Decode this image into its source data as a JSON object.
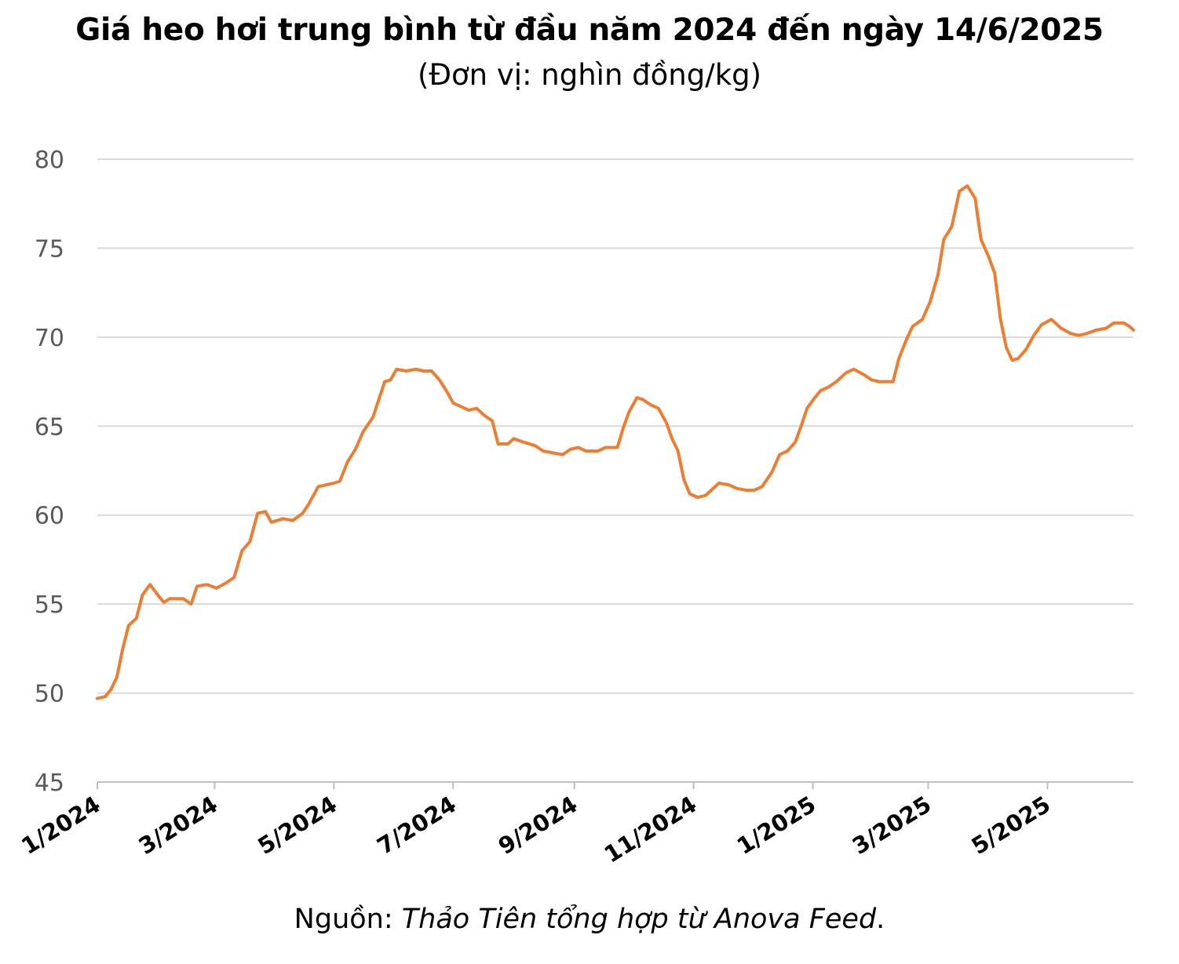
{
  "chart_data": {
    "type": "line",
    "title": "Giá heo hơi trung bình từ đầu năm 2024 đến ngày 14/6/2025",
    "subtitle": "(Đơn vị: nghìn đồng/kg)",
    "source_label": "Nguồn:",
    "source_text": "Thảo Tiên tổng hợp từ Anova Feed",
    "source_end": ".",
    "xlabel": "",
    "ylabel": "",
    "ylim": [
      45,
      80
    ],
    "yticks": [
      "45",
      "50",
      "55",
      "60",
      "65",
      "70",
      "75",
      "80"
    ],
    "x_range": [
      "2024-01-01",
      "2025-06-14"
    ],
    "xticks": [
      {
        "label": "1/2024",
        "date": "2024-01-01"
      },
      {
        "label": "3/2024",
        "date": "2024-03-01"
      },
      {
        "label": "5/2024",
        "date": "2024-05-01"
      },
      {
        "label": "7/2024",
        "date": "2024-07-01"
      },
      {
        "label": "9/2024",
        "date": "2024-09-01"
      },
      {
        "label": "11/2024",
        "date": "2024-11-01"
      },
      {
        "label": "1/2025",
        "date": "2025-01-01"
      },
      {
        "label": "3/2025",
        "date": "2025-03-01"
      },
      {
        "label": "5/2025",
        "date": "2025-05-01"
      }
    ],
    "grid": true,
    "line_color": "#ED7D31",
    "series": [
      {
        "name": "",
        "points": [
          [
            "2024-01-01",
            49.7
          ],
          [
            "2024-01-05",
            49.8
          ],
          [
            "2024-01-08",
            50.2
          ],
          [
            "2024-01-11",
            50.9
          ],
          [
            "2024-01-14",
            52.5
          ],
          [
            "2024-01-17",
            53.8
          ],
          [
            "2024-01-21",
            54.2
          ],
          [
            "2024-01-24",
            55.5
          ],
          [
            "2024-01-28",
            56.1
          ],
          [
            "2024-02-01",
            55.5
          ],
          [
            "2024-02-04",
            55.1
          ],
          [
            "2024-02-07",
            55.3
          ],
          [
            "2024-02-14",
            55.3
          ],
          [
            "2024-02-18",
            55.0
          ],
          [
            "2024-02-21",
            56.0
          ],
          [
            "2024-02-26",
            56.1
          ],
          [
            "2024-03-02",
            55.9
          ],
          [
            "2024-03-07",
            56.2
          ],
          [
            "2024-03-11",
            56.5
          ],
          [
            "2024-03-15",
            58.0
          ],
          [
            "2024-03-19",
            58.5
          ],
          [
            "2024-03-23",
            60.1
          ],
          [
            "2024-03-27",
            60.2
          ],
          [
            "2024-03-30",
            59.6
          ],
          [
            "2024-04-05",
            59.8
          ],
          [
            "2024-04-10",
            59.7
          ],
          [
            "2024-04-15",
            60.1
          ],
          [
            "2024-04-18",
            60.6
          ],
          [
            "2024-04-23",
            61.6
          ],
          [
            "2024-04-27",
            61.7
          ],
          [
            "2024-05-01",
            61.8
          ],
          [
            "2024-05-04",
            61.9
          ],
          [
            "2024-05-08",
            63.0
          ],
          [
            "2024-05-12",
            63.7
          ],
          [
            "2024-05-16",
            64.7
          ],
          [
            "2024-05-21",
            65.5
          ],
          [
            "2024-05-24",
            66.5
          ],
          [
            "2024-05-27",
            67.5
          ],
          [
            "2024-05-30",
            67.6
          ],
          [
            "2024-06-02",
            68.2
          ],
          [
            "2024-06-07",
            68.1
          ],
          [
            "2024-06-12",
            68.2
          ],
          [
            "2024-06-16",
            68.1
          ],
          [
            "2024-06-20",
            68.1
          ],
          [
            "2024-06-24",
            67.6
          ],
          [
            "2024-06-28",
            66.9
          ],
          [
            "2024-07-01",
            66.3
          ],
          [
            "2024-07-05",
            66.1
          ],
          [
            "2024-07-09",
            65.9
          ],
          [
            "2024-07-13",
            66.0
          ],
          [
            "2024-07-17",
            65.6
          ],
          [
            "2024-07-21",
            65.3
          ],
          [
            "2024-07-24",
            64.0
          ],
          [
            "2024-07-29",
            64.0
          ],
          [
            "2024-08-01",
            64.3
          ],
          [
            "2024-08-06",
            64.1
          ],
          [
            "2024-08-12",
            63.9
          ],
          [
            "2024-08-16",
            63.6
          ],
          [
            "2024-08-21",
            63.5
          ],
          [
            "2024-08-26",
            63.4
          ],
          [
            "2024-08-30",
            63.7
          ],
          [
            "2024-09-03",
            63.8
          ],
          [
            "2024-09-07",
            63.6
          ],
          [
            "2024-09-13",
            63.6
          ],
          [
            "2024-09-17",
            63.8
          ],
          [
            "2024-09-23",
            63.8
          ],
          [
            "2024-09-26",
            64.9
          ],
          [
            "2024-09-29",
            65.8
          ],
          [
            "2024-10-03",
            66.6
          ],
          [
            "2024-10-06",
            66.5
          ],
          [
            "2024-10-10",
            66.2
          ],
          [
            "2024-10-14",
            66.0
          ],
          [
            "2024-10-18",
            65.2
          ],
          [
            "2024-10-21",
            64.3
          ],
          [
            "2024-10-24",
            63.6
          ],
          [
            "2024-10-27",
            62.0
          ],
          [
            "2024-10-30",
            61.2
          ],
          [
            "2024-11-03",
            61.0
          ],
          [
            "2024-11-07",
            61.1
          ],
          [
            "2024-11-10",
            61.4
          ],
          [
            "2024-11-14",
            61.8
          ],
          [
            "2024-11-19",
            61.7
          ],
          [
            "2024-11-23",
            61.5
          ],
          [
            "2024-11-28",
            61.4
          ],
          [
            "2024-12-02",
            61.4
          ],
          [
            "2024-12-06",
            61.6
          ],
          [
            "2024-12-11",
            62.4
          ],
          [
            "2024-12-15",
            63.4
          ],
          [
            "2024-12-19",
            63.6
          ],
          [
            "2024-12-23",
            64.1
          ],
          [
            "2024-12-26",
            65.0
          ],
          [
            "2024-12-29",
            66.0
          ],
          [
            "2025-01-02",
            66.6
          ],
          [
            "2025-01-05",
            67.0
          ],
          [
            "2025-01-09",
            67.2
          ],
          [
            "2025-01-13",
            67.5
          ],
          [
            "2025-01-18",
            68.0
          ],
          [
            "2025-01-22",
            68.2
          ],
          [
            "2025-01-27",
            67.9
          ],
          [
            "2025-01-31",
            67.6
          ],
          [
            "2025-02-04",
            67.5
          ],
          [
            "2025-02-11",
            67.5
          ],
          [
            "2025-02-14",
            68.8
          ],
          [
            "2025-02-18",
            69.9
          ],
          [
            "2025-02-21",
            70.6
          ],
          [
            "2025-02-26",
            71.0
          ],
          [
            "2025-03-02",
            72.0
          ],
          [
            "2025-03-06",
            73.5
          ],
          [
            "2025-03-09",
            75.5
          ],
          [
            "2025-03-13",
            76.2
          ],
          [
            "2025-03-17",
            78.2
          ],
          [
            "2025-03-21",
            78.5
          ],
          [
            "2025-03-25",
            77.8
          ],
          [
            "2025-03-28",
            75.5
          ],
          [
            "2025-04-01",
            74.5
          ],
          [
            "2025-04-04",
            73.6
          ],
          [
            "2025-04-07",
            71.0
          ],
          [
            "2025-04-10",
            69.4
          ],
          [
            "2025-04-13",
            68.7
          ],
          [
            "2025-04-16",
            68.8
          ],
          [
            "2025-04-20",
            69.3
          ],
          [
            "2025-04-24",
            70.1
          ],
          [
            "2025-04-28",
            70.7
          ],
          [
            "2025-05-03",
            71.0
          ],
          [
            "2025-05-08",
            70.5
          ],
          [
            "2025-05-13",
            70.2
          ],
          [
            "2025-05-17",
            70.1
          ],
          [
            "2025-05-21",
            70.2
          ],
          [
            "2025-05-26",
            70.4
          ],
          [
            "2025-05-31",
            70.5
          ],
          [
            "2025-06-04",
            70.8
          ],
          [
            "2025-06-09",
            70.8
          ],
          [
            "2025-06-12",
            70.6
          ],
          [
            "2025-06-14",
            70.4
          ]
        ]
      }
    ]
  }
}
